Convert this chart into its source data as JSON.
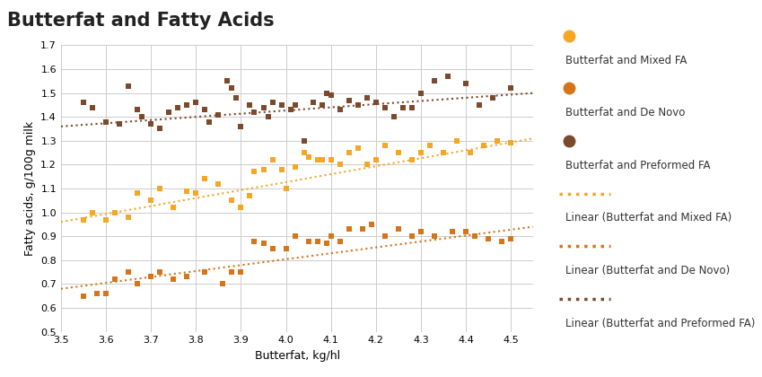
{
  "title": "Butterfat and Fatty Acids",
  "xlabel": "Butterfat, kg/hl",
  "ylabel": "Fatty acids, g/100g milk",
  "xlim": [
    3.5,
    4.55
  ],
  "ylim": [
    0.5,
    1.7
  ],
  "xticks": [
    3.5,
    3.6,
    3.7,
    3.8,
    3.9,
    4.0,
    4.1,
    4.2,
    4.3,
    4.4,
    4.5
  ],
  "yticks": [
    0.5,
    0.6,
    0.7,
    0.8,
    0.9,
    1.0,
    1.1,
    1.2,
    1.3,
    1.4,
    1.5,
    1.6,
    1.7
  ],
  "color_mixed": "#F5A623",
  "color_denovo": "#D4751A",
  "color_preformed": "#7B4A2D",
  "plot_bg": "#FFFFFF",
  "legend_bg": "#D3D3D3",
  "mixed_x": [
    3.55,
    3.57,
    3.6,
    3.62,
    3.65,
    3.67,
    3.7,
    3.72,
    3.75,
    3.78,
    3.8,
    3.82,
    3.85,
    3.88,
    3.9,
    3.92,
    3.93,
    3.95,
    3.97,
    3.99,
    4.0,
    4.02,
    4.04,
    4.05,
    4.07,
    4.08,
    4.1,
    4.12,
    4.14,
    4.16,
    4.18,
    4.2,
    4.22,
    4.25,
    4.28,
    4.3,
    4.32,
    4.35,
    4.38,
    4.41,
    4.44,
    4.47,
    4.5
  ],
  "mixed_y": [
    0.97,
    1.0,
    0.97,
    1.0,
    0.98,
    1.08,
    1.05,
    1.1,
    1.02,
    1.09,
    1.08,
    1.14,
    1.12,
    1.05,
    1.02,
    1.07,
    1.17,
    1.18,
    1.22,
    1.18,
    1.1,
    1.19,
    1.25,
    1.23,
    1.22,
    1.22,
    1.22,
    1.2,
    1.25,
    1.27,
    1.2,
    1.22,
    1.28,
    1.25,
    1.22,
    1.25,
    1.28,
    1.25,
    1.3,
    1.25,
    1.28,
    1.3,
    1.29
  ],
  "denovo_x": [
    3.55,
    3.58,
    3.6,
    3.62,
    3.65,
    3.67,
    3.7,
    3.72,
    3.75,
    3.78,
    3.82,
    3.86,
    3.88,
    3.9,
    3.93,
    3.95,
    3.97,
    4.0,
    4.02,
    4.05,
    4.07,
    4.09,
    4.1,
    4.12,
    4.14,
    4.17,
    4.19,
    4.22,
    4.25,
    4.28,
    4.3,
    4.33,
    4.37,
    4.4,
    4.42,
    4.45,
    4.48,
    4.5
  ],
  "denovo_y": [
    0.65,
    0.66,
    0.66,
    0.72,
    0.75,
    0.7,
    0.73,
    0.75,
    0.72,
    0.73,
    0.75,
    0.7,
    0.75,
    0.75,
    0.88,
    0.87,
    0.85,
    0.85,
    0.9,
    0.88,
    0.88,
    0.87,
    0.9,
    0.88,
    0.93,
    0.93,
    0.95,
    0.9,
    0.93,
    0.9,
    0.92,
    0.9,
    0.92,
    0.92,
    0.9,
    0.89,
    0.88,
    0.89
  ],
  "preformed_x": [
    3.55,
    3.57,
    3.6,
    3.63,
    3.65,
    3.67,
    3.68,
    3.7,
    3.72,
    3.74,
    3.76,
    3.78,
    3.8,
    3.82,
    3.83,
    3.85,
    3.87,
    3.88,
    3.89,
    3.9,
    3.92,
    3.93,
    3.95,
    3.96,
    3.97,
    3.99,
    4.01,
    4.02,
    4.04,
    4.06,
    4.08,
    4.09,
    4.1,
    4.12,
    4.14,
    4.16,
    4.18,
    4.2,
    4.22,
    4.24,
    4.26,
    4.28,
    4.3,
    4.33,
    4.36,
    4.4,
    4.43,
    4.46,
    4.5
  ],
  "preformed_y": [
    1.46,
    1.44,
    1.38,
    1.37,
    1.53,
    1.43,
    1.4,
    1.37,
    1.35,
    1.42,
    1.44,
    1.45,
    1.46,
    1.43,
    1.38,
    1.41,
    1.55,
    1.52,
    1.48,
    1.36,
    1.45,
    1.42,
    1.44,
    1.4,
    1.46,
    1.45,
    1.43,
    1.45,
    1.3,
    1.46,
    1.45,
    1.5,
    1.49,
    1.43,
    1.47,
    1.45,
    1.48,
    1.46,
    1.44,
    1.4,
    1.44,
    1.44,
    1.5,
    1.55,
    1.57,
    1.54,
    1.45,
    1.48,
    1.52
  ],
  "mixed_trend_x": [
    3.5,
    4.55
  ],
  "mixed_trend_y": [
    0.96,
    1.31
  ],
  "denovo_trend_x": [
    3.5,
    4.55
  ],
  "denovo_trend_y": [
    0.68,
    0.94
  ],
  "preformed_trend_x": [
    3.5,
    4.55
  ],
  "preformed_trend_y": [
    1.36,
    1.5
  ],
  "title_fontsize": 15,
  "label_fontsize": 9,
  "tick_fontsize": 8,
  "legend_fontsize": 8.5,
  "marker_size": 22
}
